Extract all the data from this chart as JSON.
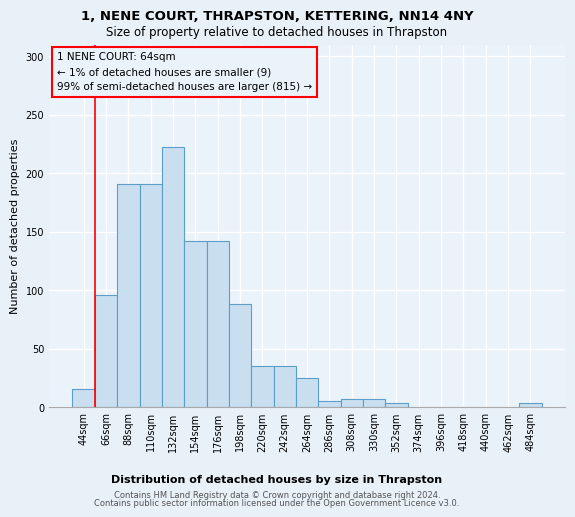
{
  "title1": "1, NENE COURT, THRAPSTON, KETTERING, NN14 4NY",
  "title2": "Size of property relative to detached houses in Thrapston",
  "xlabel": "Distribution of detached houses by size in Thrapston",
  "ylabel": "Number of detached properties",
  "footer1": "Contains HM Land Registry data © Crown copyright and database right 2024.",
  "footer2": "Contains public sector information licensed under the Open Government Licence v3.0.",
  "annotation_line1": "1 NENE COURT: 64sqm",
  "annotation_line2": "← 1% of detached houses are smaller (9)",
  "annotation_line3": "99% of semi-detached houses are larger (815) →",
  "bar_labels": [
    "44sqm",
    "66sqm",
    "88sqm",
    "110sqm",
    "132sqm",
    "154sqm",
    "176sqm",
    "198sqm",
    "220sqm",
    "242sqm",
    "264sqm",
    "286sqm",
    "308sqm",
    "330sqm",
    "352sqm",
    "374sqm",
    "396sqm",
    "418sqm",
    "440sqm",
    "462sqm",
    "484sqm"
  ],
  "bar_values": [
    15,
    96,
    191,
    191,
    222,
    142,
    142,
    88,
    35,
    35,
    25,
    5,
    7,
    7,
    3,
    0,
    0,
    0,
    0,
    0,
    3
  ],
  "bar_color": "#c9dff0",
  "bar_edge_color": "#5b9ec9",
  "red_line_x": 1,
  "bg_color": "#e8f0f8",
  "plot_bg_color": "#eaf2fa",
  "ylim": [
    0,
    310
  ],
  "yticks": [
    0,
    50,
    100,
    150,
    200,
    250,
    300
  ],
  "title1_fontsize": 9.5,
  "title2_fontsize": 8.5,
  "ylabel_fontsize": 8,
  "xlabel_fontsize": 8,
  "tick_fontsize": 7,
  "ann_fontsize": 7.5,
  "footer_fontsize": 6
}
